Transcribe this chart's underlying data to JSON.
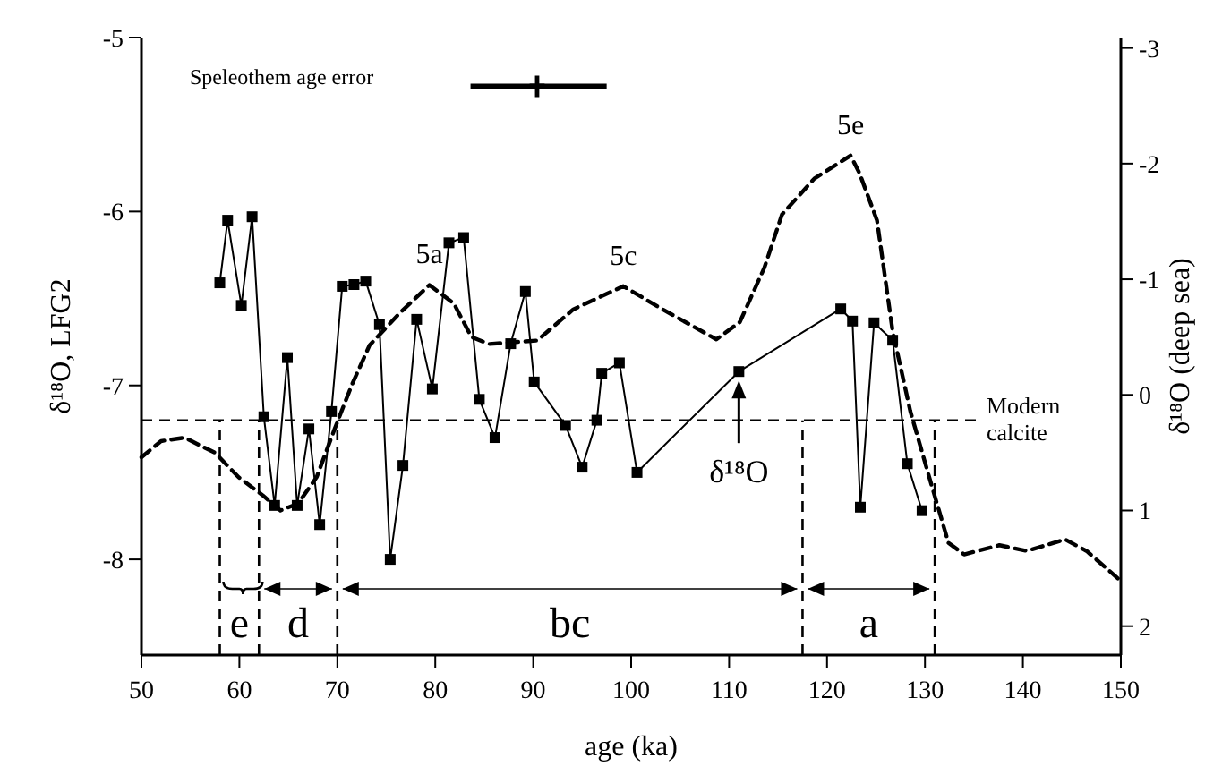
{
  "chart_data": {
    "type": "line",
    "xlabel": "age (ka)",
    "ylabel": "δ¹⁸O, LFG2",
    "y2label": "δ¹⁸O (deep sea)",
    "xlim": [
      50,
      150
    ],
    "xticks": [
      50,
      60,
      70,
      80,
      90,
      100,
      110,
      120,
      130,
      140,
      150
    ],
    "ylim": [
      -8.55,
      -5
    ],
    "yticks": [
      -5,
      -6,
      -7,
      -8
    ],
    "y2lim": [
      2.25,
      -3.09
    ],
    "y2ticks": [
      -3,
      -2,
      -1,
      0,
      1,
      2
    ],
    "series": [
      {
        "color": "#000000",
        "marker": "square",
        "line_style": "solid",
        "x": [
          58,
          58.8,
          60.2,
          61.3,
          62.5,
          63.6,
          64.9,
          65.9,
          67.1,
          68.2,
          69.4,
          70.5,
          71.7,
          72.9,
          74.3,
          75.4,
          76.7,
          78.1,
          79.7,
          81.4,
          82.9,
          84.5,
          86.1,
          87.7,
          89.2,
          90.1,
          93.3,
          95,
          96.5,
          97,
          98.8,
          100.6,
          111,
          121.4,
          122.6,
          123.4,
          124.8,
          126.7,
          128.2,
          129.7
        ],
        "values": [
          -6.41,
          -6.05,
          -6.54,
          -6.03,
          -7.18,
          -7.69,
          -6.84,
          -7.69,
          -7.25,
          -7.8,
          -7.15,
          -6.43,
          -6.42,
          -6.4,
          -6.65,
          -8,
          -7.46,
          -6.62,
          -7.02,
          -6.18,
          -6.15,
          -7.08,
          -7.3,
          -6.76,
          -6.46,
          -6.98,
          -7.23,
          -7.47,
          -7.2,
          -6.93,
          -6.87,
          -7.5,
          -6.92,
          -6.56,
          -6.63,
          -7.7,
          -6.64,
          -6.74,
          -7.45,
          -7.72
        ]
      },
      {
        "axis": "y2",
        "color": "#000000",
        "marker": "none",
        "line_style": "dashed",
        "x": [
          50,
          52,
          54.4,
          57.5,
          59.9,
          62.4,
          64.2,
          66,
          67.9,
          69.7,
          71.5,
          73.3,
          76.4,
          79.4,
          81.9,
          83.7,
          85.5,
          90.4,
          94.1,
          99.2,
          103.2,
          108.7,
          111.1,
          113.6,
          115.4,
          118.7,
          122.4,
          123.3,
          125.1,
          126.7,
          128.5,
          130.6,
          132.4,
          134,
          137.6,
          140.4,
          144.3,
          146.5,
          150
        ],
        "values": [
          0.54,
          0.4,
          0.37,
          0.5,
          0.71,
          0.87,
          1,
          0.94,
          0.71,
          0.3,
          -0.09,
          -0.43,
          -0.71,
          -0.95,
          -0.79,
          -0.5,
          -0.44,
          -0.47,
          -0.74,
          -0.94,
          -0.74,
          -0.48,
          -0.63,
          -1.1,
          -1.56,
          -1.87,
          -2.07,
          -1.92,
          -1.51,
          -0.55,
          0.14,
          0.76,
          1.28,
          1.38,
          1.3,
          1.35,
          1.25,
          1.35,
          1.61
        ]
      },
      {
        "type": "scatter",
        "color": "#000000",
        "marker": "cross",
        "x": [
          90.4
        ],
        "values": [
          -5.28
        ],
        "xerrors": [
          [
            83.6,
            97.5
          ]
        ]
      }
    ],
    "ref_lines": [
      {
        "axis": "y",
        "value": -7.2,
        "label": "Modern calcite",
        "line_style": "dashed"
      },
      {
        "axis": "x",
        "value": 58,
        "line_style": "dashed"
      },
      {
        "axis": "x",
        "value": 62,
        "line_style": "dashed"
      },
      {
        "axis": "x",
        "value": 70,
        "line_style": "dashed"
      },
      {
        "axis": "x",
        "value": 117.5,
        "line_style": "dashed"
      },
      {
        "axis": "x",
        "value": 131,
        "line_style": "dashed"
      }
    ],
    "annotations": [
      "Speleothem age error",
      "e",
      "d",
      "bc",
      "a",
      {
        "text": "5a",
        "x": 79.4,
        "y": -6.42
      },
      {
        "text": "5c",
        "x": 99.2,
        "y": -6.43
      },
      {
        "text": "5e",
        "x": 122.4,
        "y": -5.68
      },
      {
        "text": "δ¹⁸O",
        "x": 111,
        "y": -6.92
      }
    ]
  }
}
